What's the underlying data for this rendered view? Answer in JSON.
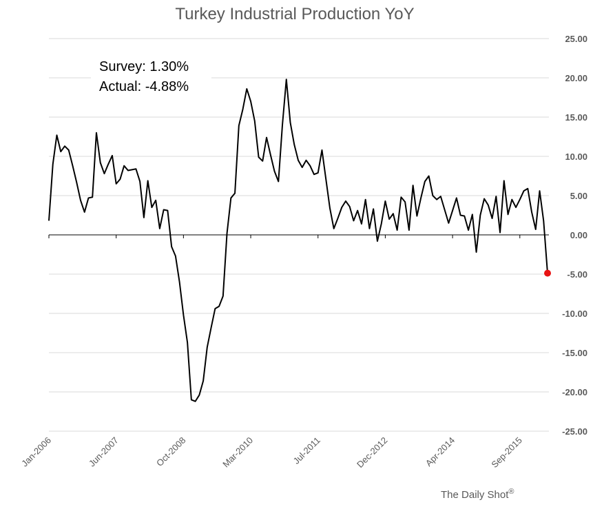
{
  "chart_data": {
    "type": "line",
    "title": "Turkey Industrial Production YoY",
    "xlabel": "",
    "ylabel": "",
    "ylim": [
      -25,
      25
    ],
    "y_ticks": [
      "25.00",
      "20.00",
      "15.00",
      "10.00",
      "5.00",
      "0.00",
      "-5.00",
      "-10.00",
      "-15.00",
      "-20.00",
      "-25.00"
    ],
    "y_tick_values": [
      25,
      20,
      15,
      10,
      5,
      0,
      -5,
      -10,
      -15,
      -20,
      -25
    ],
    "x_tick_labels": [
      "Jan-2006",
      "Jun-2007",
      "Oct-2008",
      "Mar-2010",
      "Jul-2011",
      "Dec-2012",
      "Apr-2014",
      "Sep-2015"
    ],
    "grid": true,
    "annotations": {
      "survey": "Survey: 1.30%",
      "actual": "Actual:  -4.88%"
    },
    "source": "The Daily Shot",
    "source_mark": "®",
    "line_color": "#000000",
    "highlight_color": "#e81414",
    "highlight_value": -4.88,
    "series": [
      {
        "start": "Jan-2006",
        "frequency": "monthly",
        "values": [
          1.8,
          9.0,
          12.7,
          10.6,
          11.3,
          10.8,
          8.8,
          6.7,
          4.4,
          2.9,
          4.7,
          4.8,
          13.0,
          9.2,
          7.8,
          9.0,
          10.1,
          6.5,
          7.1,
          8.8,
          8.2,
          8.3,
          8.4,
          6.8,
          2.2,
          6.9,
          3.5,
          4.4,
          0.8,
          3.2,
          3.1,
          -1.5,
          -2.7,
          -6.0,
          -10.2,
          -13.7,
          -21.0,
          -21.2,
          -20.4,
          -18.6,
          -14.3,
          -11.8,
          -9.4,
          -9.1,
          -7.8,
          0.2,
          4.7,
          5.3,
          13.9,
          16.0,
          18.6,
          17.0,
          14.5,
          9.9,
          9.4,
          12.4,
          10.2,
          8.1,
          6.8,
          14.0,
          19.8,
          14.3,
          11.5,
          9.5,
          8.6,
          9.5,
          8.8,
          7.7,
          7.9,
          10.8,
          7.1,
          3.4,
          0.8,
          2.1,
          3.5,
          4.3,
          3.6,
          1.8,
          3.1,
          1.4,
          4.5,
          0.8,
          3.3,
          -0.8,
          1.4,
          4.3,
          2.0,
          2.7,
          0.6,
          4.8,
          4.2,
          0.6,
          6.3,
          2.4,
          4.7,
          6.8,
          7.5,
          5.0,
          4.5,
          4.9,
          3.2,
          1.5,
          3.1,
          4.7,
          2.5,
          2.4,
          0.6,
          2.6,
          -2.2,
          2.5,
          4.6,
          3.8,
          2.1,
          4.9,
          0.3,
          6.9,
          2.6,
          4.5,
          3.5,
          4.5,
          5.6,
          5.9,
          2.9,
          0.7,
          5.6,
          1.8,
          -4.88
        ]
      }
    ]
  }
}
